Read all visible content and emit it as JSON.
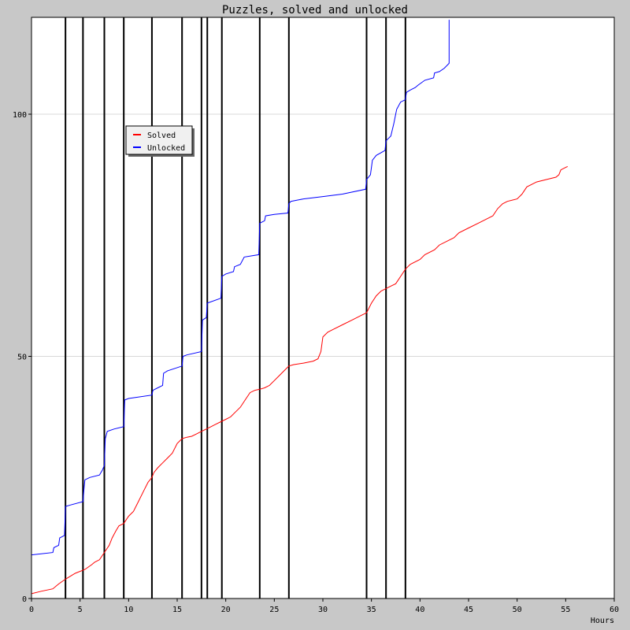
{
  "chart_data": {
    "type": "line",
    "title": "Puzzles, solved and unlocked",
    "xlabel": "Hours",
    "ylabel": "",
    "xlim": [
      0,
      60
    ],
    "ylim": [
      0,
      120
    ],
    "x_ticks": [
      0,
      5,
      10,
      15,
      20,
      25,
      30,
      35,
      40,
      45,
      50,
      55,
      60
    ],
    "y_ticks": [
      0,
      50,
      100
    ],
    "y_gridlines": [
      50,
      100
    ],
    "legend_position": "top-left",
    "vertical_markers": [
      3.5,
      5.3,
      7.5,
      9.5,
      12.4,
      15.5,
      17.5,
      18.1,
      19.6,
      23.5,
      26.5,
      34.5,
      36.5,
      38.5
    ],
    "series": [
      {
        "name": "Solved",
        "color": "#ff0000",
        "points": [
          [
            0,
            1
          ],
          [
            1,
            1.5
          ],
          [
            2.2,
            2
          ],
          [
            2.8,
            3
          ],
          [
            3.5,
            4
          ],
          [
            4.5,
            5.2
          ],
          [
            5.5,
            6
          ],
          [
            6.2,
            7
          ],
          [
            6.5,
            7.5
          ],
          [
            7,
            8
          ],
          [
            7.5,
            9.5
          ],
          [
            8,
            11
          ],
          [
            8.3,
            12.5
          ],
          [
            8.7,
            14
          ],
          [
            9,
            15
          ],
          [
            9.5,
            15.5
          ],
          [
            10,
            17
          ],
          [
            10.5,
            18
          ],
          [
            11,
            20
          ],
          [
            11.5,
            22
          ],
          [
            12,
            24
          ],
          [
            12.4,
            25
          ],
          [
            12.6,
            26
          ],
          [
            13,
            27
          ],
          [
            13.5,
            28
          ],
          [
            14,
            29
          ],
          [
            14.5,
            30
          ],
          [
            15,
            32
          ],
          [
            15.5,
            33
          ],
          [
            16,
            33.3
          ],
          [
            16.5,
            33.5
          ],
          [
            17,
            34
          ],
          [
            17.5,
            34.5
          ],
          [
            18,
            35
          ],
          [
            18.5,
            35.5
          ],
          [
            19,
            36
          ],
          [
            19.5,
            36.5
          ],
          [
            20,
            37
          ],
          [
            20.5,
            37.5
          ],
          [
            21,
            38.5
          ],
          [
            21.5,
            39.5
          ],
          [
            22,
            41
          ],
          [
            22.5,
            42.5
          ],
          [
            23,
            43
          ],
          [
            23.5,
            43.2
          ],
          [
            24,
            43.5
          ],
          [
            24.5,
            44
          ],
          [
            25,
            45
          ],
          [
            25.5,
            46
          ],
          [
            26,
            47
          ],
          [
            26.5,
            48
          ],
          [
            27,
            48.3
          ],
          [
            28,
            48.6
          ],
          [
            29,
            49
          ],
          [
            29.5,
            49.5
          ],
          [
            29.8,
            51
          ],
          [
            30,
            54
          ],
          [
            30.5,
            55
          ],
          [
            31,
            55.5
          ],
          [
            32,
            56.5
          ],
          [
            33,
            57.5
          ],
          [
            34,
            58.5
          ],
          [
            34.5,
            59
          ],
          [
            35,
            61
          ],
          [
            35.5,
            62.5
          ],
          [
            36,
            63.5
          ],
          [
            36.5,
            64
          ],
          [
            37,
            64.5
          ],
          [
            37.5,
            65
          ],
          [
            38,
            66.5
          ],
          [
            38.5,
            68
          ],
          [
            39,
            69
          ],
          [
            40,
            70
          ],
          [
            40.5,
            71
          ],
          [
            41.5,
            72
          ],
          [
            42,
            73
          ],
          [
            43,
            74
          ],
          [
            43.5,
            74.5
          ],
          [
            44,
            75.5
          ],
          [
            45,
            76.5
          ],
          [
            46,
            77.5
          ],
          [
            47,
            78.5
          ],
          [
            47.5,
            79
          ],
          [
            48,
            80.5
          ],
          [
            48.5,
            81.5
          ],
          [
            49,
            82
          ],
          [
            50,
            82.5
          ],
          [
            50.5,
            83.5
          ],
          [
            51,
            85
          ],
          [
            52,
            86
          ],
          [
            53,
            86.5
          ],
          [
            54,
            87
          ],
          [
            54.3,
            87.5
          ],
          [
            54.5,
            88.5
          ],
          [
            55,
            89
          ],
          [
            55.2,
            89.2
          ]
        ]
      },
      {
        "name": "Unlocked",
        "color": "#0000ff",
        "points": [
          [
            0,
            9
          ],
          [
            2.2,
            9.5
          ],
          [
            2.3,
            10.5
          ],
          [
            2.8,
            11
          ],
          [
            2.9,
            12.5
          ],
          [
            3.4,
            13
          ],
          [
            3.5,
            19
          ],
          [
            4,
            19.3
          ],
          [
            5.3,
            20
          ],
          [
            5.4,
            22.5
          ],
          [
            5.5,
            24.5
          ],
          [
            6,
            25
          ],
          [
            7,
            25.5
          ],
          [
            7.3,
            26.5
          ],
          [
            7.5,
            27.5
          ],
          [
            7.6,
            33
          ],
          [
            7.8,
            34.5
          ],
          [
            8.5,
            35
          ],
          [
            9.5,
            35.5
          ],
          [
            9.6,
            41
          ],
          [
            10,
            41.3
          ],
          [
            12.4,
            42
          ],
          [
            12.5,
            43
          ],
          [
            13,
            43.5
          ],
          [
            13.5,
            44
          ],
          [
            13.6,
            46.5
          ],
          [
            14,
            47
          ],
          [
            15.5,
            48
          ],
          [
            15.6,
            50
          ],
          [
            16,
            50.3
          ],
          [
            17.5,
            51
          ],
          [
            17.6,
            57.5
          ],
          [
            18,
            58
          ],
          [
            18.1,
            61
          ],
          [
            19.5,
            62
          ],
          [
            19.6,
            66.5
          ],
          [
            20,
            67
          ],
          [
            20.8,
            67.5
          ],
          [
            20.9,
            68.5
          ],
          [
            21.5,
            69
          ],
          [
            21.9,
            70.5
          ],
          [
            23.4,
            71
          ],
          [
            23.5,
            77.5
          ],
          [
            24,
            78
          ],
          [
            24.1,
            79
          ],
          [
            25,
            79.3
          ],
          [
            26.4,
            79.6
          ],
          [
            26.5,
            81.5
          ],
          [
            26.7,
            82
          ],
          [
            28,
            82.5
          ],
          [
            30,
            83
          ],
          [
            32,
            83.5
          ],
          [
            34.4,
            84.5
          ],
          [
            34.5,
            86.5
          ],
          [
            34.9,
            87.5
          ],
          [
            35.1,
            90.5
          ],
          [
            35.5,
            91.5
          ],
          [
            36.4,
            92.5
          ],
          [
            36.5,
            94.5
          ],
          [
            37,
            95.5
          ],
          [
            37.3,
            98
          ],
          [
            37.6,
            101
          ],
          [
            38,
            102.5
          ],
          [
            38.5,
            103
          ],
          [
            38.6,
            104.5
          ],
          [
            39,
            105
          ],
          [
            39.5,
            105.5
          ],
          [
            39.8,
            106
          ],
          [
            40.5,
            107
          ],
          [
            41.4,
            107.5
          ],
          [
            41.5,
            108.5
          ],
          [
            42,
            108.8
          ],
          [
            42.5,
            109.5
          ],
          [
            43,
            110.5
          ],
          [
            43,
            119.5
          ]
        ]
      }
    ]
  }
}
